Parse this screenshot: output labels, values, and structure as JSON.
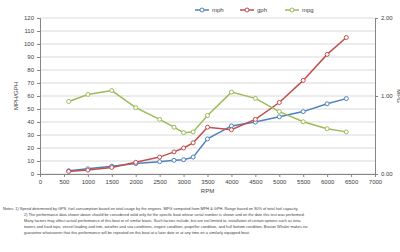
{
  "chart_data": {
    "type": "line",
    "x_label": "RPM",
    "y_label": "MPH/GPH",
    "y2_label": "MPG",
    "x": [
      600,
      1000,
      1500,
      2000,
      2500,
      2800,
      3000,
      3200,
      3500,
      4000,
      4500,
      5000,
      5500,
      6000,
      6400
    ],
    "series": [
      {
        "name": "mph",
        "color": "#4f81bd",
        "marker": "circle",
        "values": [
          2.5,
          4,
          6,
          8,
          9.5,
          10.5,
          11,
          13,
          27,
          37,
          40,
          44,
          48,
          54,
          58
        ]
      },
      {
        "name": "gph",
        "color": "#c0504d",
        "marker": "circle",
        "values": [
          2,
          3,
          5,
          9,
          13,
          17,
          20,
          24,
          36,
          34,
          42,
          55,
          72,
          92,
          105
        ]
      },
      {
        "name": "mpg",
        "color": "#9bbb59",
        "marker": "circle",
        "axis": "y2",
        "values": [
          0.93,
          1.02,
          1.07,
          0.85,
          0.7,
          0.6,
          0.53,
          0.54,
          0.75,
          1.05,
          0.97,
          0.8,
          0.67,
          0.58,
          0.54
        ]
      }
    ],
    "xlim": [
      0,
      7000
    ],
    "xticks": [
      0,
      500,
      1000,
      1500,
      2000,
      2500,
      3000,
      3500,
      4000,
      4500,
      5000,
      5500,
      6000,
      6500,
      7000
    ],
    "ylim": [
      0,
      120
    ],
    "yticks": [
      0,
      10,
      20,
      30,
      40,
      50,
      60,
      70,
      80,
      90,
      100,
      110,
      120
    ],
    "y2lim": [
      0,
      2
    ],
    "y2ticks": [
      {
        "value": 0,
        "label": "0.00"
      },
      {
        "value": 1,
        "label": "1.00"
      },
      {
        "value": 2,
        "label": "2.00"
      }
    ],
    "grid": true,
    "legend": "top",
    "annotations": [
      "Notes: 1) Speed determined by GPS, fuel consumption based on total usage by the engines. MPG computed from MPH & GPH. Range based on 90% of total fuel capacity.",
      "2) The performance data shown above should be considered valid only for the specific boat whose serial number is shown and on the date this test was performed.",
      "Many factors may affect actual performance of this boat or of similar boats. Such factors include, but are not limited to, installation of certain options such as tuna",
      "towers and hard tops, vessel loading and trim, weather and sea conditions, engine condition, propeller condition, and hull bottom condition. Boston Whaler makes no",
      "guarantee whatsoever that this performance will be repeated on this boat at a later date or at any time on a similarly equipped boat."
    ]
  }
}
